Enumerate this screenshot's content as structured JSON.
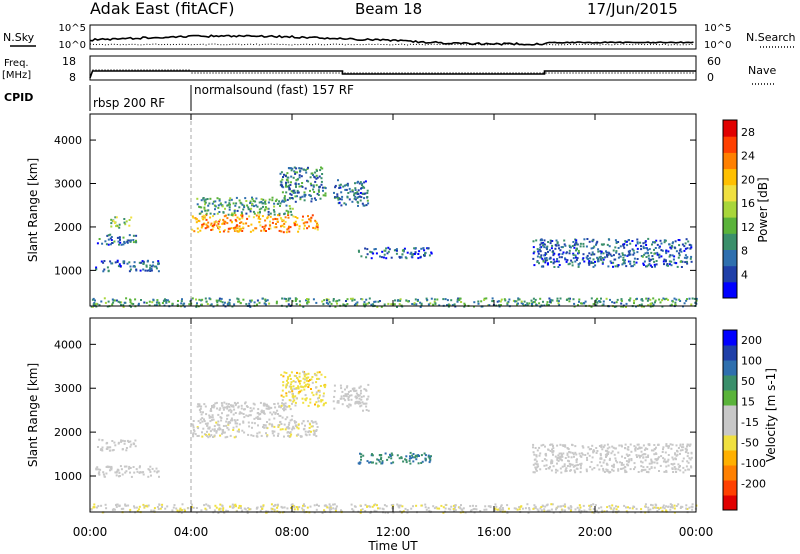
{
  "header": {
    "station": "Adak East (fitACF)",
    "beam": "Beam 18",
    "date": "17/Jun/2015"
  },
  "noise_panel": {
    "left_label": "N.Sky",
    "right_label": "N.Search",
    "left_ticks": [
      "10^5",
      "10^0"
    ],
    "right_ticks": [
      "10^5",
      "10^0"
    ]
  },
  "freq_panel": {
    "left_label_line1": "Freq.",
    "left_label_line2": "[MHz]",
    "left_ticks": [
      "18",
      "8"
    ],
    "right_label": "Nave",
    "right_ticks": [
      "60",
      "0"
    ]
  },
  "cpid_panel": {
    "label": "CPID",
    "modes": [
      {
        "name": "rbsp 200 RF",
        "start_hour": 0,
        "end_hour": 4
      },
      {
        "name": "normalsound (fast) 157 RF",
        "start_hour": 4,
        "end_hour": 24
      }
    ]
  },
  "time_axis": {
    "label": "Time UT",
    "ticks": [
      "00:00",
      "04:00",
      "08:00",
      "12:00",
      "16:00",
      "20:00",
      "00:00"
    ]
  },
  "chart_data": [
    {
      "type": "heatmap",
      "title": "Power",
      "xlabel": "Time UT",
      "ylabel": "Slant Range [km]",
      "xlim_hours": [
        0,
        24
      ],
      "ylim": [
        180,
        4600
      ],
      "yticks": [
        1000,
        2000,
        3000,
        4000
      ],
      "colorbar": {
        "label": "Power [dB]",
        "tick_labels": [
          "4",
          "8",
          "12",
          "16",
          "20",
          "24",
          "28"
        ],
        "range": [
          0,
          30
        ],
        "colors": [
          "#0000ff",
          "#1f3fa8",
          "#2e6fae",
          "#3a8f6b",
          "#5ab33a",
          "#a8d63a",
          "#f0e040",
          "#ffc000",
          "#ff8000",
          "#ff4000",
          "#e00000"
        ]
      },
      "echo_regions": [
        {
          "t": [
            0.2,
            1.8
          ],
          "r": [
            1600,
            1850
          ],
          "value": 7
        },
        {
          "t": [
            0.2,
            2.7
          ],
          "r": [
            1000,
            1250
          ],
          "value": 6
        },
        {
          "t": [
            0.8,
            1.6
          ],
          "r": [
            2000,
            2250
          ],
          "value": 13
        },
        {
          "t": [
            4.0,
            9.0
          ],
          "r": [
            1900,
            2300
          ],
          "value": 22
        },
        {
          "t": [
            4.2,
            8.0
          ],
          "r": [
            2300,
            2700
          ],
          "value": 10
        },
        {
          "t": [
            7.5,
            9.3
          ],
          "r": [
            2600,
            3400
          ],
          "value": 8
        },
        {
          "t": [
            9.6,
            11.0
          ],
          "r": [
            2500,
            3100
          ],
          "value": 7
        },
        {
          "t": [
            10.5,
            13.5
          ],
          "r": [
            1300,
            1550
          ],
          "value": 6
        },
        {
          "t": [
            17.5,
            23.8
          ],
          "r": [
            1100,
            1750
          ],
          "value": 6
        },
        {
          "t": [
            0.0,
            24.0
          ],
          "r": [
            180,
            380
          ],
          "value": 10
        }
      ]
    },
    {
      "type": "heatmap",
      "title": "Velocity",
      "xlabel": "Time UT",
      "ylabel": "Slant Range [km]",
      "xlim_hours": [
        0,
        24
      ],
      "ylim": [
        180,
        4600
      ],
      "yticks": [
        1000,
        2000,
        3000,
        4000
      ],
      "colorbar": {
        "label": "Velocity [m s-1]",
        "tick_labels": [
          "200",
          "100",
          "50",
          "15",
          "-15",
          "-50",
          "-100",
          "-200"
        ],
        "range": [
          -250,
          250
        ],
        "colors": [
          "#e00000",
          "#ff4000",
          "#ff8000",
          "#ffb000",
          "#f0e040",
          "#c8c8c8",
          "#c8c8c8",
          "#5ab33a",
          "#3a8f6b",
          "#2e6fae",
          "#1f3fa8",
          "#0000ff"
        ]
      },
      "echo_regions": [
        {
          "t": [
            0.2,
            1.8
          ],
          "r": [
            1600,
            1850
          ],
          "value": 0
        },
        {
          "t": [
            0.2,
            2.7
          ],
          "r": [
            1000,
            1250
          ],
          "value": 0
        },
        {
          "t": [
            4.0,
            9.0
          ],
          "r": [
            1900,
            2300
          ],
          "value": -20
        },
        {
          "t": [
            4.2,
            8.0
          ],
          "r": [
            2300,
            2700
          ],
          "value": 0
        },
        {
          "t": [
            7.5,
            9.3
          ],
          "r": [
            2600,
            3400
          ],
          "value": -60
        },
        {
          "t": [
            9.6,
            11.0
          ],
          "r": [
            2500,
            3100
          ],
          "value": 0
        },
        {
          "t": [
            10.5,
            13.5
          ],
          "r": [
            1300,
            1550
          ],
          "value": 120
        },
        {
          "t": [
            17.5,
            23.8
          ],
          "r": [
            1100,
            1750
          ],
          "value": 0
        },
        {
          "t": [
            0.0,
            24.0
          ],
          "r": [
            180,
            380
          ],
          "value": -30
        }
      ]
    }
  ]
}
